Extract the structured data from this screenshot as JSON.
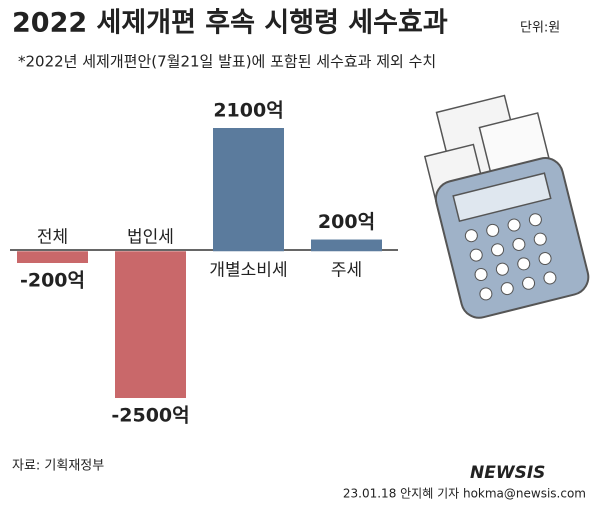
{
  "chart_data": {
    "type": "bar",
    "title": "2022 세제개편 후속 시행령 세수효과",
    "unit": "단위:원",
    "subtitle": "*2022년 세제개편안(7월21일 발표)에 포함된 세수효과 제외 수치",
    "categories": [
      "전체",
      "법인세",
      "개별소비세",
      "주세"
    ],
    "values": [
      -200,
      -2500,
      2100,
      200
    ],
    "value_labels": [
      "-200억",
      "-2500억",
      "2100억",
      "200억"
    ],
    "colors": [
      "#c9686a",
      "#c9686a",
      "#5b7b9d",
      "#5b7b9d"
    ],
    "source": "자료: 기획재정부",
    "credit": "23.01.18 안지혜 기자 hokma@newsis.com",
    "watermark": "NEWSIS"
  }
}
